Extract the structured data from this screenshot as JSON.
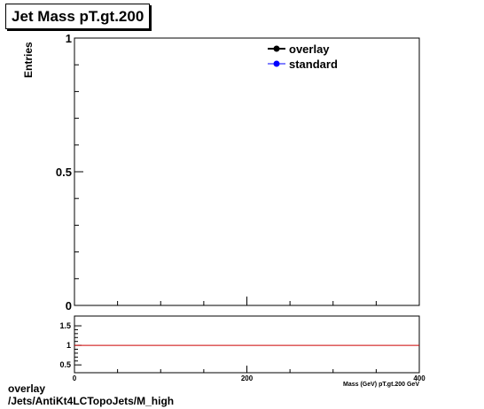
{
  "chart_data": [
    {
      "type": "line",
      "title": "Jet Mass pT.gt.200",
      "xlabel": "Mass (GeV) pT.gt.200 GeV",
      "ylabel": "Entries",
      "xlim": [
        0,
        400
      ],
      "ylim": [
        0,
        1
      ],
      "x_ticks": [
        "0",
        "200",
        "400"
      ],
      "y_ticks": [
        "0",
        "0.5",
        "1"
      ],
      "series": [
        {
          "name": "overlay",
          "color": "#000000",
          "marker": "circle",
          "x": [],
          "y": []
        },
        {
          "name": "standard",
          "color": "#0000ff",
          "marker": "circle",
          "x": [],
          "y": []
        }
      ],
      "legend_position": "top-right",
      "grid": false
    },
    {
      "type": "line",
      "title": "",
      "xlim": [
        0,
        400
      ],
      "ylim": [
        0.3,
        1.75
      ],
      "x_ticks": [
        "0",
        "200",
        "400"
      ],
      "y_ticks": [
        "0.5",
        "1",
        "1.5"
      ],
      "reference_line": {
        "y": 1,
        "color": "#cc0000"
      },
      "grid": false
    }
  ],
  "footer": {
    "line1": "overlay",
    "line2": "/Jets/AntiKt4LCTopoJets/M_high"
  }
}
